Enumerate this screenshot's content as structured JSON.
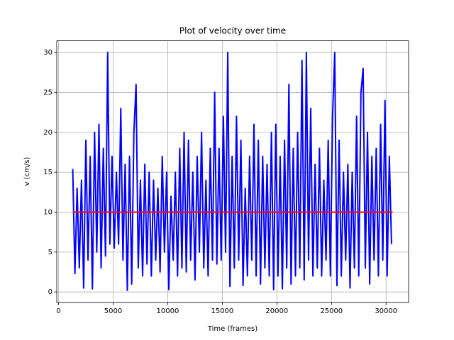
{
  "chart_data": {
    "type": "line",
    "title": "Plot of velocity over time",
    "x_label": "Time (frames)",
    "y_label": "v (cm/s)",
    "xlim": [
      -165,
      32065
    ],
    "ylim": [
      -1.33,
      31.46
    ],
    "xticks": [
      0,
      5000,
      10000,
      15000,
      20000,
      25000,
      30000
    ],
    "yticks": [
      0,
      5,
      10,
      15,
      20,
      25,
      30
    ],
    "grid": true,
    "series": [
      {
        "color": "#0000ff",
        "x": [
          1300,
          1500,
          1700,
          1900,
          2100,
          2300,
          2500,
          2700,
          2900,
          3100,
          3300,
          3500,
          3700,
          3900,
          4100,
          4300,
          4500,
          4700,
          4900,
          5100,
          5300,
          5500,
          5700,
          5900,
          6100,
          6300,
          6500,
          6700,
          6900,
          7100,
          7300,
          7500,
          7700,
          7900,
          8100,
          8300,
          8500,
          8700,
          8900,
          9100,
          9300,
          9500,
          9700,
          9900,
          10100,
          10300,
          10500,
          10700,
          10900,
          11100,
          11300,
          11500,
          11700,
          11900,
          12100,
          12300,
          12500,
          12700,
          12900,
          13100,
          13300,
          13500,
          13700,
          13900,
          14100,
          14300,
          14500,
          14700,
          14900,
          15100,
          15300,
          15500,
          15700,
          15900,
          16100,
          16300,
          16500,
          16700,
          16900,
          17100,
          17300,
          17500,
          17700,
          17900,
          18100,
          18300,
          18500,
          18700,
          18900,
          19100,
          19300,
          19500,
          19700,
          19900,
          20100,
          20300,
          20500,
          20700,
          20900,
          21100,
          21300,
          21500,
          21700,
          21900,
          22100,
          22300,
          22500,
          22700,
          22900,
          23100,
          23300,
          23500,
          23700,
          23900,
          24100,
          24300,
          24500,
          24700,
          24900,
          25100,
          25300,
          25500,
          25700,
          25900,
          26100,
          26300,
          26500,
          26700,
          26900,
          27100,
          27300,
          27500,
          27700,
          27900,
          28100,
          28300,
          28500,
          28700,
          28900,
          29100,
          29300,
          29500,
          29700,
          29900,
          30100,
          30300,
          30500
        ],
        "values": [
          15.4,
          2.3,
          13,
          3,
          14,
          0.5,
          19,
          4,
          17,
          0.4,
          20,
          5,
          21,
          3,
          18,
          4.5,
          30,
          6,
          17,
          5.5,
          15,
          6,
          23,
          4,
          16,
          0.2,
          17,
          1,
          20,
          26,
          3,
          14,
          2,
          16,
          3.5,
          15,
          2,
          14,
          4,
          13,
          2.5,
          17,
          5,
          15,
          0.3,
          12,
          4,
          15,
          2,
          18,
          3,
          20,
          2.5,
          19,
          4,
          15,
          1.5,
          17,
          5,
          20,
          3,
          14,
          2,
          18,
          4,
          25,
          3.5,
          18,
          4,
          22,
          5,
          30,
          0.7,
          17,
          3,
          22,
          4,
          19,
          0.8,
          13,
          2,
          17,
          4,
          21,
          2,
          19,
          1,
          17,
          3,
          16,
          2,
          20,
          0.3,
          21,
          2,
          17,
          0.4,
          19,
          3,
          26,
          1,
          18,
          2,
          20,
          3,
          29,
          1.5,
          30,
          4,
          23,
          2,
          16,
          3,
          18,
          2,
          14,
          4,
          19,
          2,
          22,
          30,
          0.8,
          19,
          2,
          15,
          4,
          16,
          0.5,
          15,
          3,
          22,
          2,
          25,
          28,
          3,
          20,
          1,
          17,
          4,
          18,
          2,
          21,
          4,
          24,
          2,
          17,
          6
        ]
      },
      {
        "color": "#ff0000",
        "x": [
          1300,
          30600
        ],
        "values": [
          10,
          10
        ]
      }
    ]
  }
}
